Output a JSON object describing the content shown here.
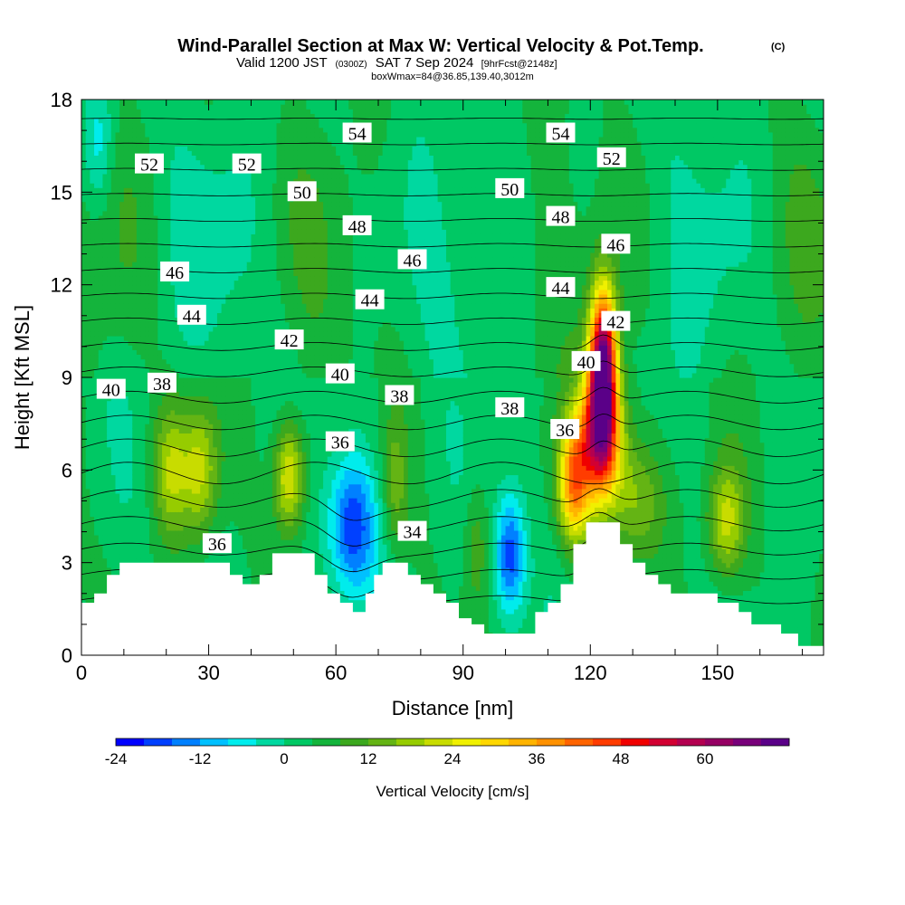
{
  "title": {
    "main": "Wind-Parallel Section at Max W: Vertical Velocity & Pot.Temp.",
    "copyright": "(C)",
    "valid_prefix": "Valid 1200 JST",
    "valid_zulu": "(0300Z)",
    "valid_date": "SAT 7 Sep 2024",
    "forecast": "[9hrFcst@2148z]",
    "box": "boxWmax=84@36.85,139.40,3012m"
  },
  "colors": {
    "background": "#ffffff",
    "terrain": "#ffffff",
    "contour_line": "#000000",
    "scale": [
      "#0000ff",
      "#0040ff",
      "#0080ff",
      "#00c0ff",
      "#00ecec",
      "#00d8a0",
      "#00c864",
      "#14b43c",
      "#3ca81e",
      "#64b414",
      "#96cc00",
      "#c8dc00",
      "#f0f000",
      "#ffd700",
      "#ffb400",
      "#ff9100",
      "#ff6400",
      "#ff3c00",
      "#f00000",
      "#d20032",
      "#b40050",
      "#960064",
      "#78007a",
      "#5a0088"
    ]
  },
  "chart_data": {
    "type": "heatmap",
    "xlabel": "Distance [nm]",
    "ylabel": "Height [Kft MSL]",
    "xlim": [
      0,
      175
    ],
    "ylim": [
      0,
      18
    ],
    "xticks": [
      0,
      30,
      60,
      90,
      120,
      150
    ],
    "yticks": [
      0,
      3,
      6,
      9,
      12,
      15,
      18
    ],
    "colorbar": {
      "label": "Vertical Velocity [cm/s]",
      "min": -24,
      "max": 69,
      "step": 4,
      "ticks": [
        -24,
        -12,
        0,
        12,
        24,
        36,
        48,
        60
      ]
    },
    "terrain": [
      [
        0,
        1.7
      ],
      [
        3,
        1.7
      ],
      [
        3,
        2.0
      ],
      [
        6,
        2.0
      ],
      [
        6,
        2.6
      ],
      [
        9,
        2.6
      ],
      [
        9,
        3.0
      ],
      [
        35,
        3.0
      ],
      [
        35,
        2.6
      ],
      [
        38,
        2.6
      ],
      [
        38,
        2.3
      ],
      [
        42,
        2.3
      ],
      [
        42,
        2.6
      ],
      [
        45,
        2.6
      ],
      [
        45,
        3.3
      ],
      [
        55,
        3.3
      ],
      [
        55,
        2.6
      ],
      [
        58,
        2.6
      ],
      [
        58,
        2.0
      ],
      [
        61,
        2.0
      ],
      [
        61,
        1.7
      ],
      [
        64,
        1.7
      ],
      [
        64,
        1.4
      ],
      [
        67,
        1.4
      ],
      [
        67,
        2.0
      ],
      [
        69,
        2.0
      ],
      [
        69,
        2.6
      ],
      [
        71,
        2.6
      ],
      [
        71,
        3.0
      ],
      [
        77,
        3.0
      ],
      [
        77,
        2.6
      ],
      [
        80,
        2.6
      ],
      [
        80,
        2.3
      ],
      [
        83,
        2.3
      ],
      [
        83,
        2.0
      ],
      [
        86,
        2.0
      ],
      [
        86,
        1.7
      ],
      [
        89,
        1.7
      ],
      [
        89,
        1.2
      ],
      [
        92,
        1.2
      ],
      [
        92,
        1.0
      ],
      [
        95,
        1.0
      ],
      [
        95,
        0.7
      ],
      [
        107,
        0.7
      ],
      [
        107,
        1.4
      ],
      [
        110,
        1.4
      ],
      [
        110,
        1.7
      ],
      [
        113,
        1.7
      ],
      [
        113,
        2.3
      ],
      [
        116,
        2.3
      ],
      [
        116,
        3.6
      ],
      [
        119,
        3.6
      ],
      [
        119,
        4.3
      ],
      [
        127,
        4.3
      ],
      [
        127,
        3.6
      ],
      [
        130,
        3.6
      ],
      [
        130,
        3.0
      ],
      [
        133,
        3.0
      ],
      [
        133,
        2.6
      ],
      [
        136,
        2.6
      ],
      [
        136,
        2.3
      ],
      [
        139,
        2.3
      ],
      [
        139,
        2.0
      ],
      [
        150,
        2.0
      ],
      [
        150,
        1.7
      ],
      [
        155,
        1.7
      ],
      [
        155,
        1.4
      ],
      [
        158,
        1.4
      ],
      [
        158,
        1.0
      ],
      [
        165,
        1.0
      ],
      [
        165,
        0.7
      ],
      [
        169,
        0.7
      ],
      [
        169,
        0.3
      ],
      [
        175,
        0.3
      ]
    ],
    "potential_temperature": {
      "levels": [
        34,
        35,
        36,
        37,
        38,
        39,
        40,
        41,
        42,
        43,
        44,
        45,
        46,
        47,
        48,
        49,
        50,
        51,
        52,
        53,
        54
      ],
      "labels": [
        {
          "text": "52",
          "x": 16,
          "y": 15.9
        },
        {
          "text": "52",
          "x": 39,
          "y": 15.9
        },
        {
          "text": "54",
          "x": 65,
          "y": 16.9
        },
        {
          "text": "54",
          "x": 113,
          "y": 16.9
        },
        {
          "text": "52",
          "x": 125,
          "y": 16.1
        },
        {
          "text": "50",
          "x": 52,
          "y": 15.0
        },
        {
          "text": "50",
          "x": 101,
          "y": 15.1
        },
        {
          "text": "48",
          "x": 65,
          "y": 13.9
        },
        {
          "text": "48",
          "x": 113,
          "y": 14.2
        },
        {
          "text": "46",
          "x": 22,
          "y": 12.4
        },
        {
          "text": "46",
          "x": 78,
          "y": 12.8
        },
        {
          "text": "46",
          "x": 126,
          "y": 13.3
        },
        {
          "text": "44",
          "x": 26,
          "y": 11.0
        },
        {
          "text": "44",
          "x": 68,
          "y": 11.5
        },
        {
          "text": "44",
          "x": 113,
          "y": 11.9
        },
        {
          "text": "42",
          "x": 49,
          "y": 10.2
        },
        {
          "text": "42",
          "x": 126,
          "y": 10.8
        },
        {
          "text": "40",
          "x": 7,
          "y": 8.6
        },
        {
          "text": "40",
          "x": 61,
          "y": 9.1
        },
        {
          "text": "40",
          "x": 119,
          "y": 9.5
        },
        {
          "text": "38",
          "x": 19,
          "y": 8.8
        },
        {
          "text": "38",
          "x": 75,
          "y": 8.4
        },
        {
          "text": "38",
          "x": 101,
          "y": 8.0
        },
        {
          "text": "36",
          "x": 61,
          "y": 6.9
        },
        {
          "text": "36",
          "x": 114,
          "y": 7.3
        },
        {
          "text": "36",
          "x": 32,
          "y": 3.6
        },
        {
          "text": "34",
          "x": 78,
          "y": 4.0
        }
      ]
    },
    "vertical_velocity_features": [
      {
        "x": 21,
        "y": 6.0,
        "w": 16,
        "sx": 3.0,
        "sy": 1.5
      },
      {
        "x": 28,
        "y": 6.0,
        "w": 17,
        "sx": 3.0,
        "sy": 1.5
      },
      {
        "x": 49,
        "y": 5.8,
        "w": 24,
        "sx": 2.6,
        "sy": 1.3
      },
      {
        "x": 64,
        "y": 4.2,
        "w": -23,
        "sx": 4.0,
        "sy": 1.6
      },
      {
        "x": 74,
        "y": 5.5,
        "w": 10,
        "sx": 2.0,
        "sy": 1.5
      },
      {
        "x": 101,
        "y": 3.2,
        "w": -22,
        "sx": 2.5,
        "sy": 1.4
      },
      {
        "x": 93,
        "y": 3.5,
        "w": 8,
        "sx": 2.0,
        "sy": 1.4
      },
      {
        "x": 123,
        "y": 9.3,
        "w": 66,
        "sx": 2.2,
        "sy": 1.8
      },
      {
        "x": 122,
        "y": 7.0,
        "w": 42,
        "sx": 4.0,
        "sy": 1.5
      },
      {
        "x": 116,
        "y": 5.5,
        "w": 30,
        "sx": 2.5,
        "sy": 1.3
      },
      {
        "x": 131,
        "y": 5.0,
        "w": 14,
        "sx": 4.5,
        "sy": 1.4
      },
      {
        "x": 152,
        "y": 4.3,
        "w": 18,
        "sx": 3.0,
        "sy": 1.3
      },
      {
        "x": 4,
        "y": 16.5,
        "w": -9,
        "sx": 2.5,
        "sy": 1.5
      }
    ]
  }
}
